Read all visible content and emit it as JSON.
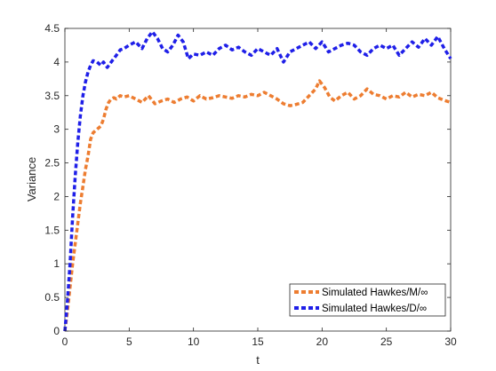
{
  "chart_data": {
    "type": "line",
    "title": "",
    "xlabel": "t",
    "ylabel": "Variance",
    "xlim": [
      0,
      30
    ],
    "ylim": [
      0,
      4.5
    ],
    "xticks": [
      "0",
      "5",
      "10",
      "15",
      "20",
      "25",
      "30"
    ],
    "yticks": [
      "0",
      "0.5",
      "1",
      "1.5",
      "2",
      "2.5",
      "3",
      "3.5",
      "4",
      "4.5"
    ],
    "grid": false,
    "legend_position": "bottom-right",
    "series": [
      {
        "name": "Simulated Hawkes/M/∞",
        "color": "#ED7D31",
        "line_style": "dashed",
        "x": [
          0,
          0.2,
          0.4,
          0.6,
          0.8,
          1.0,
          1.2,
          1.4,
          1.6,
          1.8,
          2.0,
          2.2,
          2.5,
          2.8,
          3.0,
          3.2,
          3.4,
          3.6,
          3.8,
          4.0,
          4.3,
          4.6,
          5.0,
          5.5,
          6.0,
          6.5,
          7.0,
          7.5,
          8.0,
          8.5,
          9.0,
          9.5,
          10.0,
          10.5,
          11.0,
          11.5,
          12.0,
          12.5,
          13.0,
          13.5,
          14.0,
          14.5,
          15.0,
          15.5,
          16.0,
          16.5,
          17.0,
          17.5,
          18.0,
          18.5,
          19.0,
          19.5,
          19.8,
          20.2,
          20.6,
          21.0,
          21.5,
          22.0,
          22.5,
          23.0,
          23.5,
          24.0,
          24.5,
          25.0,
          25.5,
          26.0,
          26.5,
          27.0,
          27.5,
          28.0,
          28.5,
          29.0,
          29.5,
          30.0
        ],
        "y": [
          0.0,
          0.3,
          0.65,
          1.0,
          1.3,
          1.6,
          1.9,
          2.15,
          2.4,
          2.6,
          2.85,
          2.95,
          3.0,
          3.05,
          3.15,
          3.3,
          3.4,
          3.45,
          3.47,
          3.45,
          3.5,
          3.48,
          3.5,
          3.45,
          3.4,
          3.5,
          3.38,
          3.42,
          3.45,
          3.4,
          3.45,
          3.48,
          3.42,
          3.5,
          3.45,
          3.47,
          3.5,
          3.48,
          3.46,
          3.5,
          3.48,
          3.52,
          3.5,
          3.55,
          3.5,
          3.45,
          3.38,
          3.35,
          3.37,
          3.4,
          3.5,
          3.6,
          3.72,
          3.62,
          3.48,
          3.42,
          3.5,
          3.55,
          3.45,
          3.5,
          3.6,
          3.52,
          3.5,
          3.45,
          3.5,
          3.48,
          3.55,
          3.48,
          3.52,
          3.5,
          3.55,
          3.47,
          3.43,
          3.4
        ]
      },
      {
        "name": "Simulated Hawkes/D/∞",
        "color": "#1F1FE8",
        "line_style": "dashed",
        "x": [
          0,
          0.2,
          0.4,
          0.6,
          0.8,
          1.0,
          1.2,
          1.4,
          1.6,
          1.8,
          2.0,
          2.2,
          2.5,
          2.8,
          3.0,
          3.3,
          3.6,
          4.0,
          4.3,
          4.6,
          5.0,
          5.5,
          6.0,
          6.4,
          6.8,
          7.2,
          7.6,
          8.0,
          8.4,
          8.8,
          9.2,
          9.6,
          10.0,
          10.5,
          11.0,
          11.5,
          12.0,
          12.5,
          13.0,
          13.5,
          14.0,
          14.5,
          15.0,
          15.5,
          16.0,
          16.5,
          17.0,
          17.5,
          18.0,
          18.5,
          19.0,
          19.5,
          20.0,
          20.5,
          21.0,
          21.5,
          22.0,
          22.5,
          23.0,
          23.5,
          24.0,
          24.5,
          25.0,
          25.5,
          26.0,
          26.5,
          27.0,
          27.5,
          28.0,
          28.5,
          29.0,
          29.5,
          30.0
        ],
        "y": [
          0.0,
          0.45,
          1.0,
          1.7,
          2.3,
          2.8,
          3.2,
          3.5,
          3.7,
          3.85,
          3.95,
          4.02,
          4.0,
          3.95,
          4.0,
          3.92,
          4.0,
          4.1,
          4.18,
          4.2,
          4.25,
          4.3,
          4.2,
          4.35,
          4.45,
          4.35,
          4.2,
          4.15,
          4.25,
          4.4,
          4.3,
          4.05,
          4.12,
          4.1,
          4.15,
          4.1,
          4.2,
          4.25,
          4.18,
          4.22,
          4.15,
          4.1,
          4.2,
          4.15,
          4.1,
          4.2,
          4.0,
          4.15,
          4.2,
          4.25,
          4.3,
          4.2,
          4.3,
          4.15,
          4.2,
          4.25,
          4.28,
          4.25,
          4.15,
          4.1,
          4.2,
          4.25,
          4.2,
          4.25,
          4.1,
          4.2,
          4.3,
          4.22,
          4.35,
          4.25,
          4.38,
          4.2,
          4.05
        ]
      }
    ]
  }
}
